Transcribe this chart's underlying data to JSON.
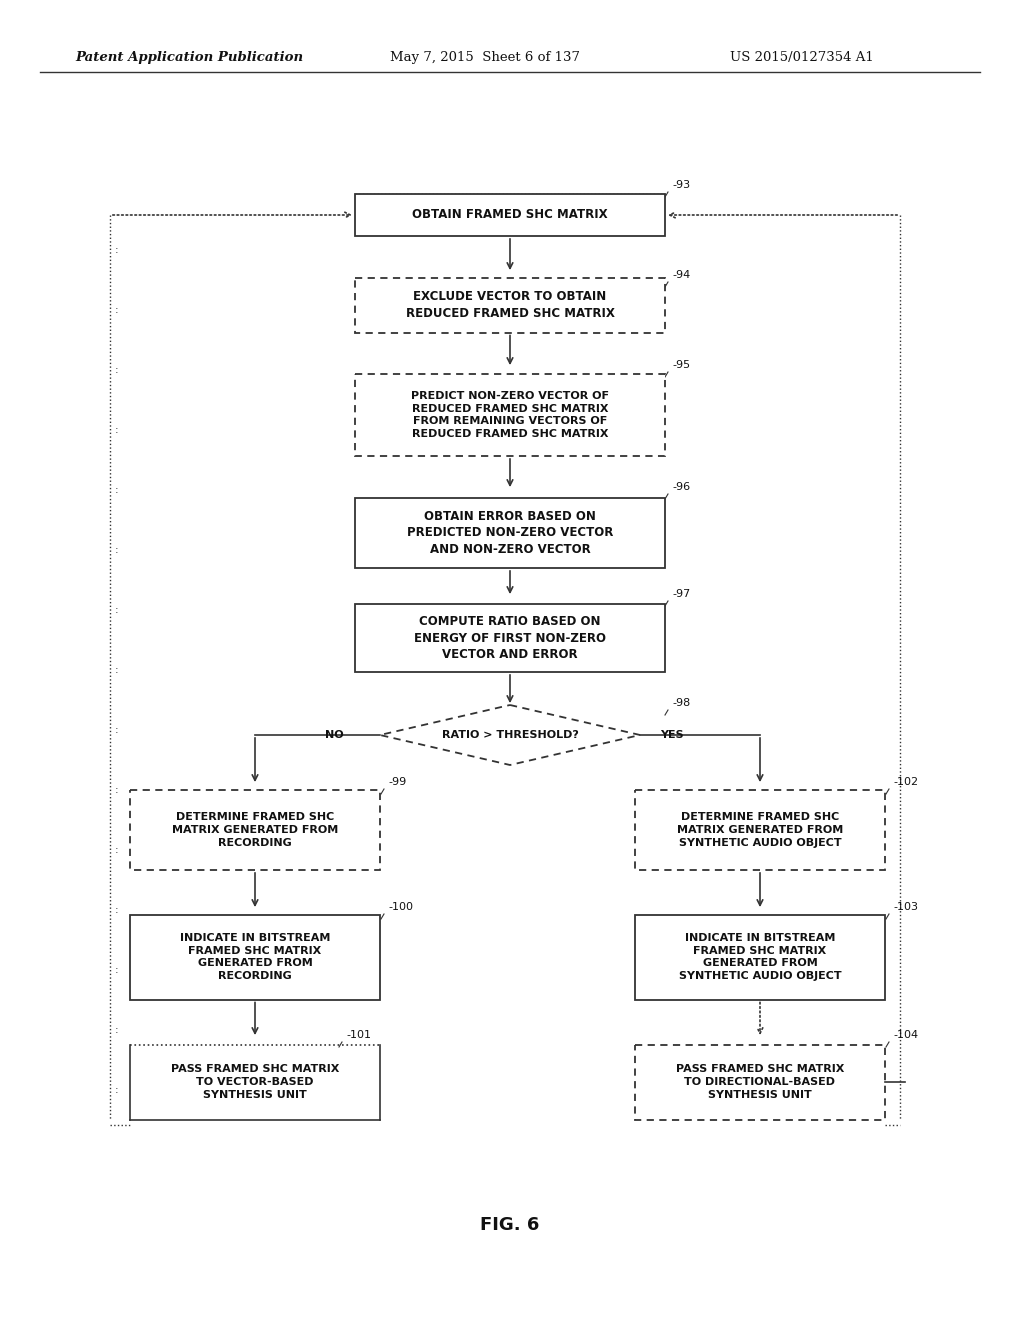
{
  "header_left": "Patent Application Publication",
  "header_mid": "May 7, 2015  Sheet 6 of 137",
  "header_right": "US 2015/0127354 A1",
  "footer": "FIG. 6",
  "bg_color": "#ffffff",
  "line_color": "#333333",
  "text_color": "#111111",
  "fig_width": 10.2,
  "fig_height": 13.2,
  "dpi": 100
}
